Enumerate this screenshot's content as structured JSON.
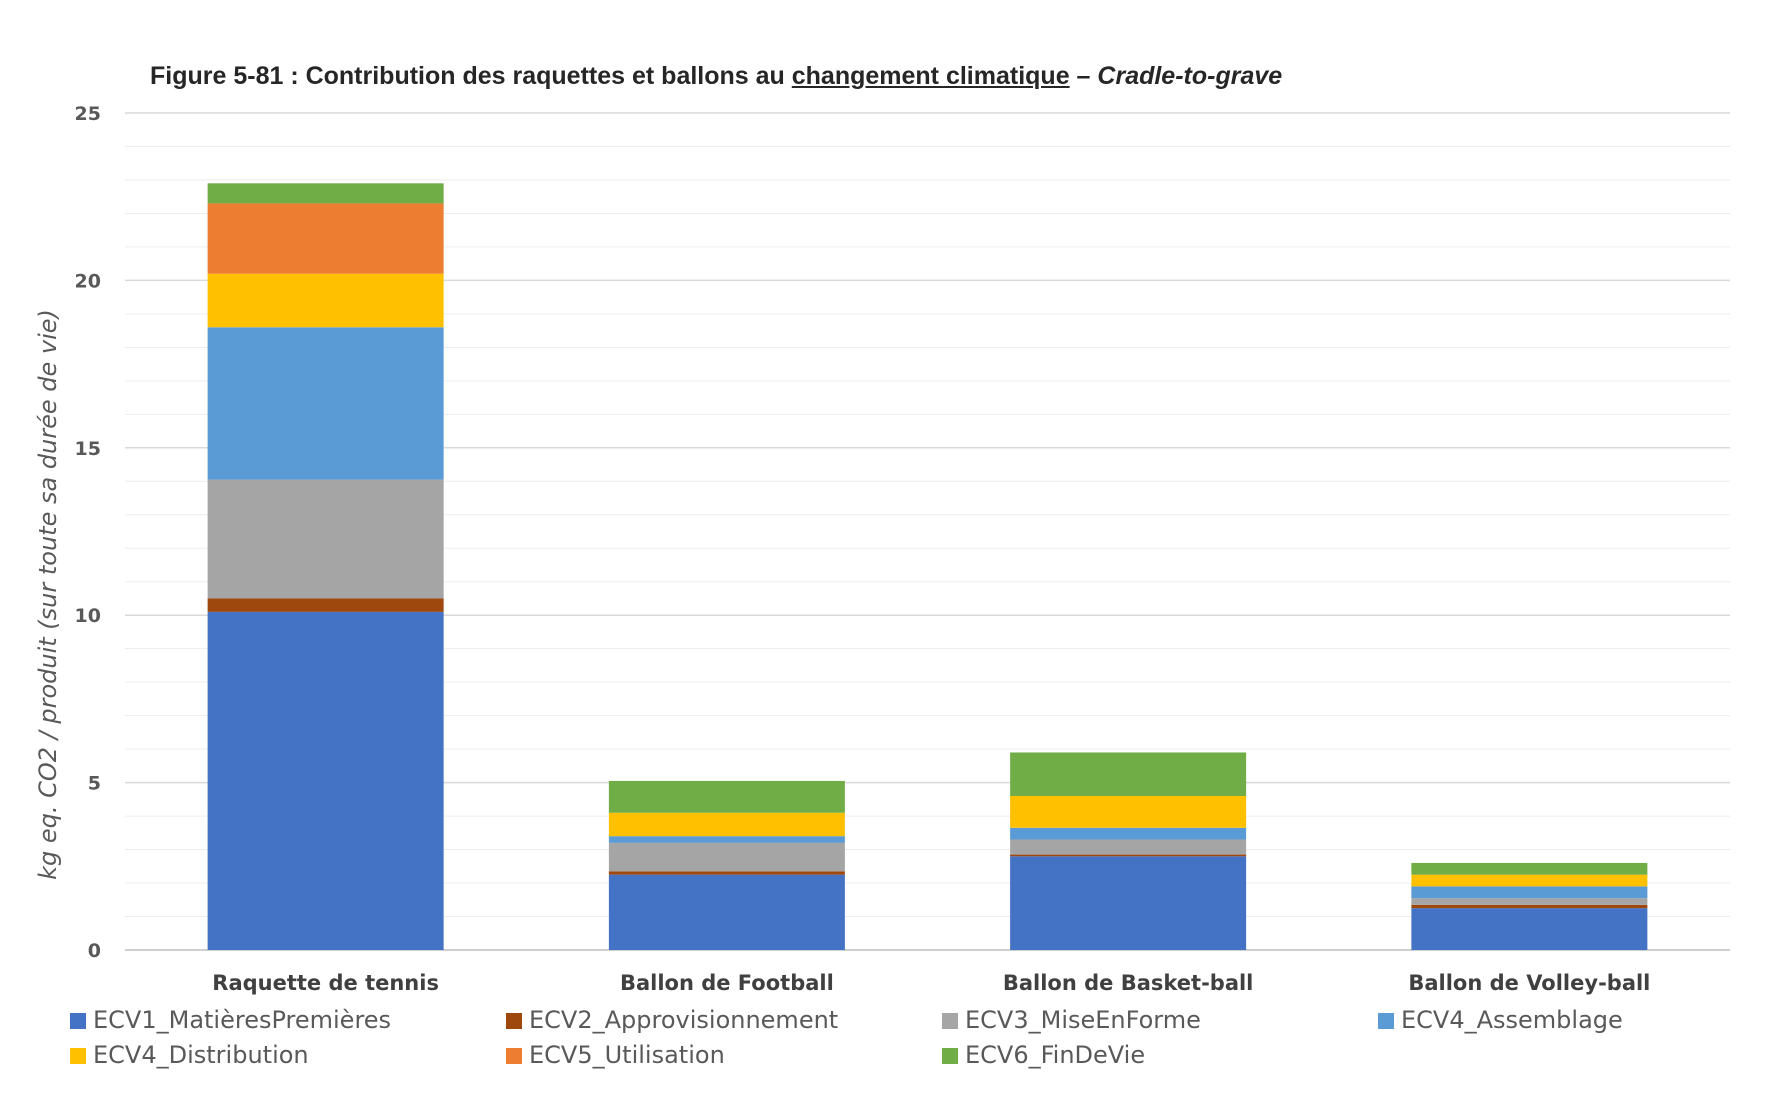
{
  "title": {
    "prefix": "Figure 5-81 : Contribution des raquettes et ballons au ",
    "underlined": "changement climatique",
    "dash": " – ",
    "italic": "Cradle-to-grave"
  },
  "chart_data": {
    "type": "bar",
    "stacked": true,
    "ylabel": "kg eq. CO2 / produit (sur toute sa durée de vie)",
    "xlabel": "",
    "ylim": [
      0,
      25
    ],
    "yticks": [
      0,
      5,
      10,
      15,
      20,
      25
    ],
    "grid": true,
    "legend_position": "bottom",
    "categories": [
      "Raquette de tennis",
      "Ballon de Football",
      "Ballon de Basket-ball",
      "Ballon de Volley-ball"
    ],
    "series": [
      {
        "name": "ECV1_MatièresPremières",
        "color": "#4472C4",
        "values": [
          10.1,
          2.25,
          2.8,
          1.25
        ]
      },
      {
        "name": "ECV2_Approvisionnement",
        "color": "#9E480E",
        "values": [
          0.4,
          0.1,
          0.05,
          0.1
        ]
      },
      {
        "name": "ECV3_MiseEnForme",
        "color": "#A5A5A5",
        "values": [
          3.55,
          0.85,
          0.45,
          0.2
        ]
      },
      {
        "name": "ECV4_Assemblage",
        "color": "#5B9BD5",
        "values": [
          4.55,
          0.2,
          0.35,
          0.35
        ]
      },
      {
        "name": "ECV4_Distribution",
        "color": "#FFC000",
        "values": [
          1.6,
          0.7,
          0.95,
          0.35
        ]
      },
      {
        "name": "ECV5_Utilisation",
        "color": "#ED7D31",
        "values": [
          2.1,
          0,
          0,
          0
        ]
      },
      {
        "name": "ECV6_FinDeVie",
        "color": "#70AD47",
        "values": [
          0.6,
          0.95,
          1.3,
          0.35
        ]
      }
    ]
  }
}
